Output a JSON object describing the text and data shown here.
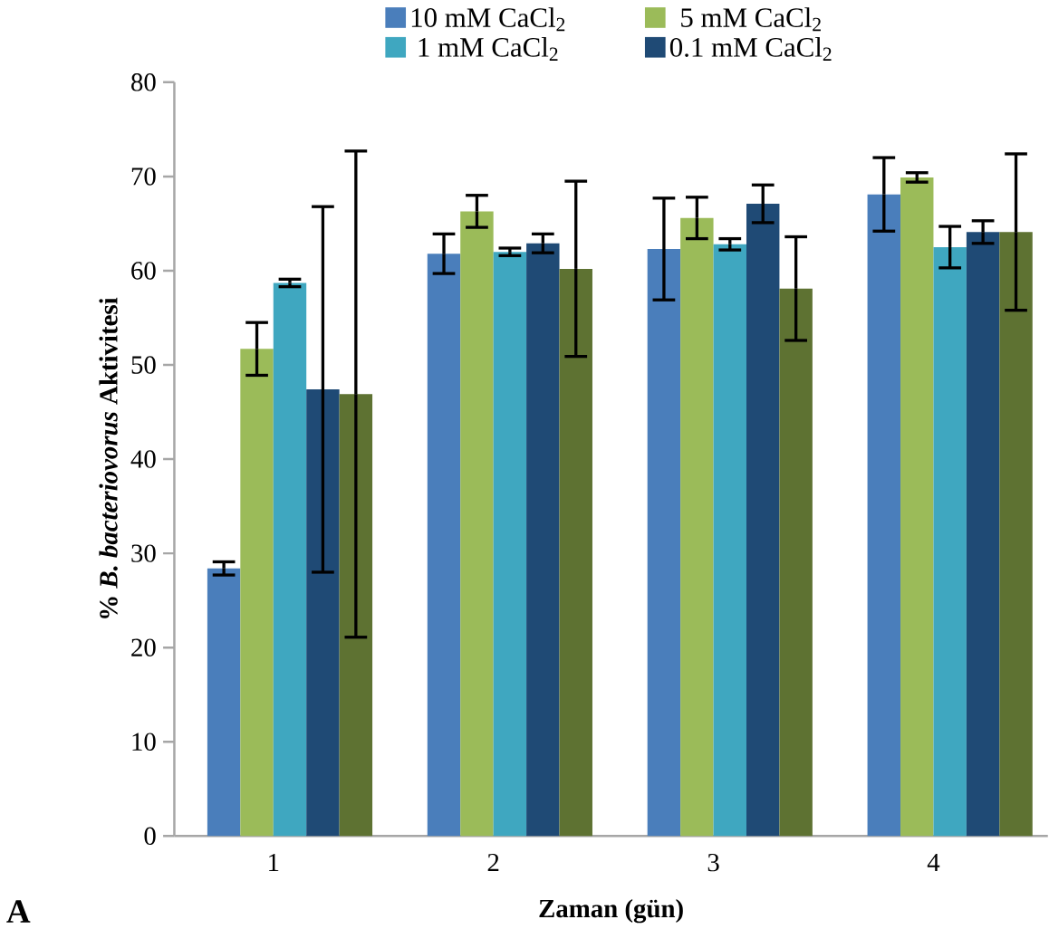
{
  "chart_data": {
    "type": "bar",
    "xlabel": "Zaman (gün)",
    "ylabel": "% *B. bacteriovorus* Aktivitesi",
    "categories": [
      "1",
      "2",
      "3",
      "4"
    ],
    "ylim": [
      0,
      80
    ],
    "yticks": [
      0,
      10,
      20,
      30,
      40,
      50,
      60,
      70,
      80
    ],
    "legend": "top",
    "grid": false,
    "series": [
      {
        "name": "10 mM CaCl$_{2}$",
        "color": "#4a7ebb",
        "values": [
          28.4,
          61.8,
          62.3,
          68.1
        ],
        "errors": [
          0.7,
          2.1,
          5.4,
          3.9
        ]
      },
      {
        "name": "5 mM CaCl$_{2}$",
        "color": "#9bbb59",
        "values": [
          51.7,
          66.3,
          65.6,
          69.9
        ],
        "errors": [
          2.8,
          1.7,
          2.2,
          0.5
        ]
      },
      {
        "name": "1 mM CaCl$_{2}$",
        "color": "#3fa7c0",
        "values": [
          58.7,
          62.0,
          62.8,
          62.5
        ],
        "errors": [
          0.4,
          0.4,
          0.6,
          2.2
        ]
      },
      {
        "name": "0.1 mM CaCl$_{2}$",
        "color": "#1f4a75",
        "values": [
          47.4,
          62.9,
          67.1,
          64.1
        ],
        "errors": [
          19.4,
          1.0,
          2.0,
          1.2
        ]
      },
      {
        "color": "#5e7232",
        "values": [
          46.9,
          60.2,
          58.1,
          64.1
        ],
        "errors": [
          25.8,
          9.3,
          5.5,
          8.3
        ]
      }
    ],
    "annotations": [
      "A"
    ]
  }
}
